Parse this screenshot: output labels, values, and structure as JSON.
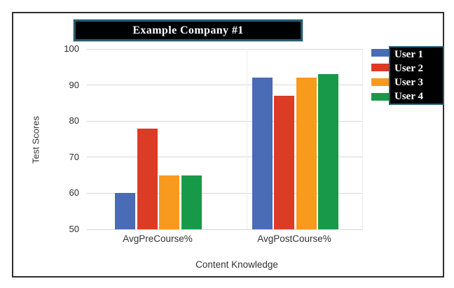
{
  "title": {
    "text": "Example Company #1",
    "bg": "#010101",
    "border_color": "#265a6f",
    "text_color": "#ffffff"
  },
  "legend": {
    "bg": "#010101",
    "border_color": "#265a6f",
    "items": [
      {
        "label": "User 1",
        "color": "#4a6bb5"
      },
      {
        "label": "User 2",
        "color": "#dc3b26"
      },
      {
        "label": "User 3",
        "color": "#f89a1d"
      },
      {
        "label": "User 4",
        "color": "#18994a"
      }
    ]
  },
  "chart_data": {
    "type": "bar",
    "title": "Example Company #1",
    "categories": [
      "AvgPreCourse%",
      "AvgPostCourse%"
    ],
    "series": [
      {
        "name": "User 1",
        "color": "#4a6bb5",
        "values": [
          60,
          92
        ]
      },
      {
        "name": "User 2",
        "color": "#dc3b26",
        "values": [
          78,
          87
        ]
      },
      {
        "name": "User 3",
        "color": "#f89a1d",
        "values": [
          65,
          92
        ]
      },
      {
        "name": "User 4",
        "color": "#18994a",
        "values": [
          65,
          93
        ]
      }
    ],
    "xlabel": "Content Knowledge",
    "ylabel": "Test Scores",
    "ylim": [
      50,
      100
    ],
    "yticks": [
      50,
      60,
      70,
      80,
      90,
      100
    ],
    "grid": "horizontal-light",
    "legend_position": "right"
  }
}
